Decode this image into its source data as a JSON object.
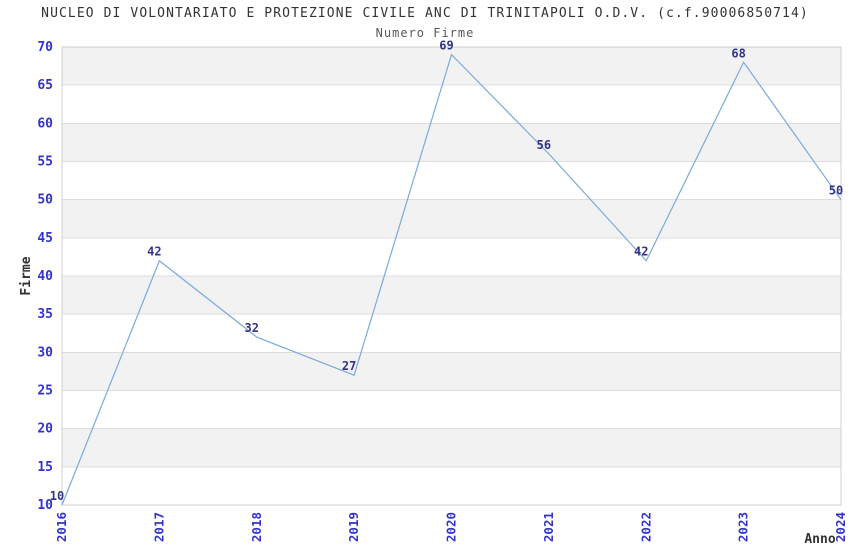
{
  "chart_data": {
    "type": "line",
    "title": "NUCLEO DI VOLONTARIATO E PROTEZIONE CIVILE ANC DI TRINITAPOLI O.D.V. (c.f.90006850714)",
    "subtitle": "Numero Firme",
    "xlabel": "Anno",
    "ylabel": "Firme",
    "x": [
      "2016",
      "2017",
      "2018",
      "2019",
      "2020",
      "2021",
      "2022",
      "2023",
      "2024"
    ],
    "values": [
      10,
      42,
      32,
      27,
      69,
      56,
      42,
      68,
      50
    ],
    "ylim": [
      10,
      70
    ],
    "ytick_step": 5,
    "grid": "horizontal-bands-alternating",
    "legend": "none",
    "markers": "none",
    "x_tick_rotation_deg": 90,
    "colors": {
      "line": "#7aaadc",
      "axis_tick_label": "#3333cc",
      "point_label": "#333388",
      "band": "#f2f2f2",
      "band_alt": "#ffffff",
      "gridline": "#dddddd",
      "plot_border": "#d0d0d0",
      "title": "#333333",
      "subtitle": "#595959",
      "axis_title": "#333333"
    }
  }
}
